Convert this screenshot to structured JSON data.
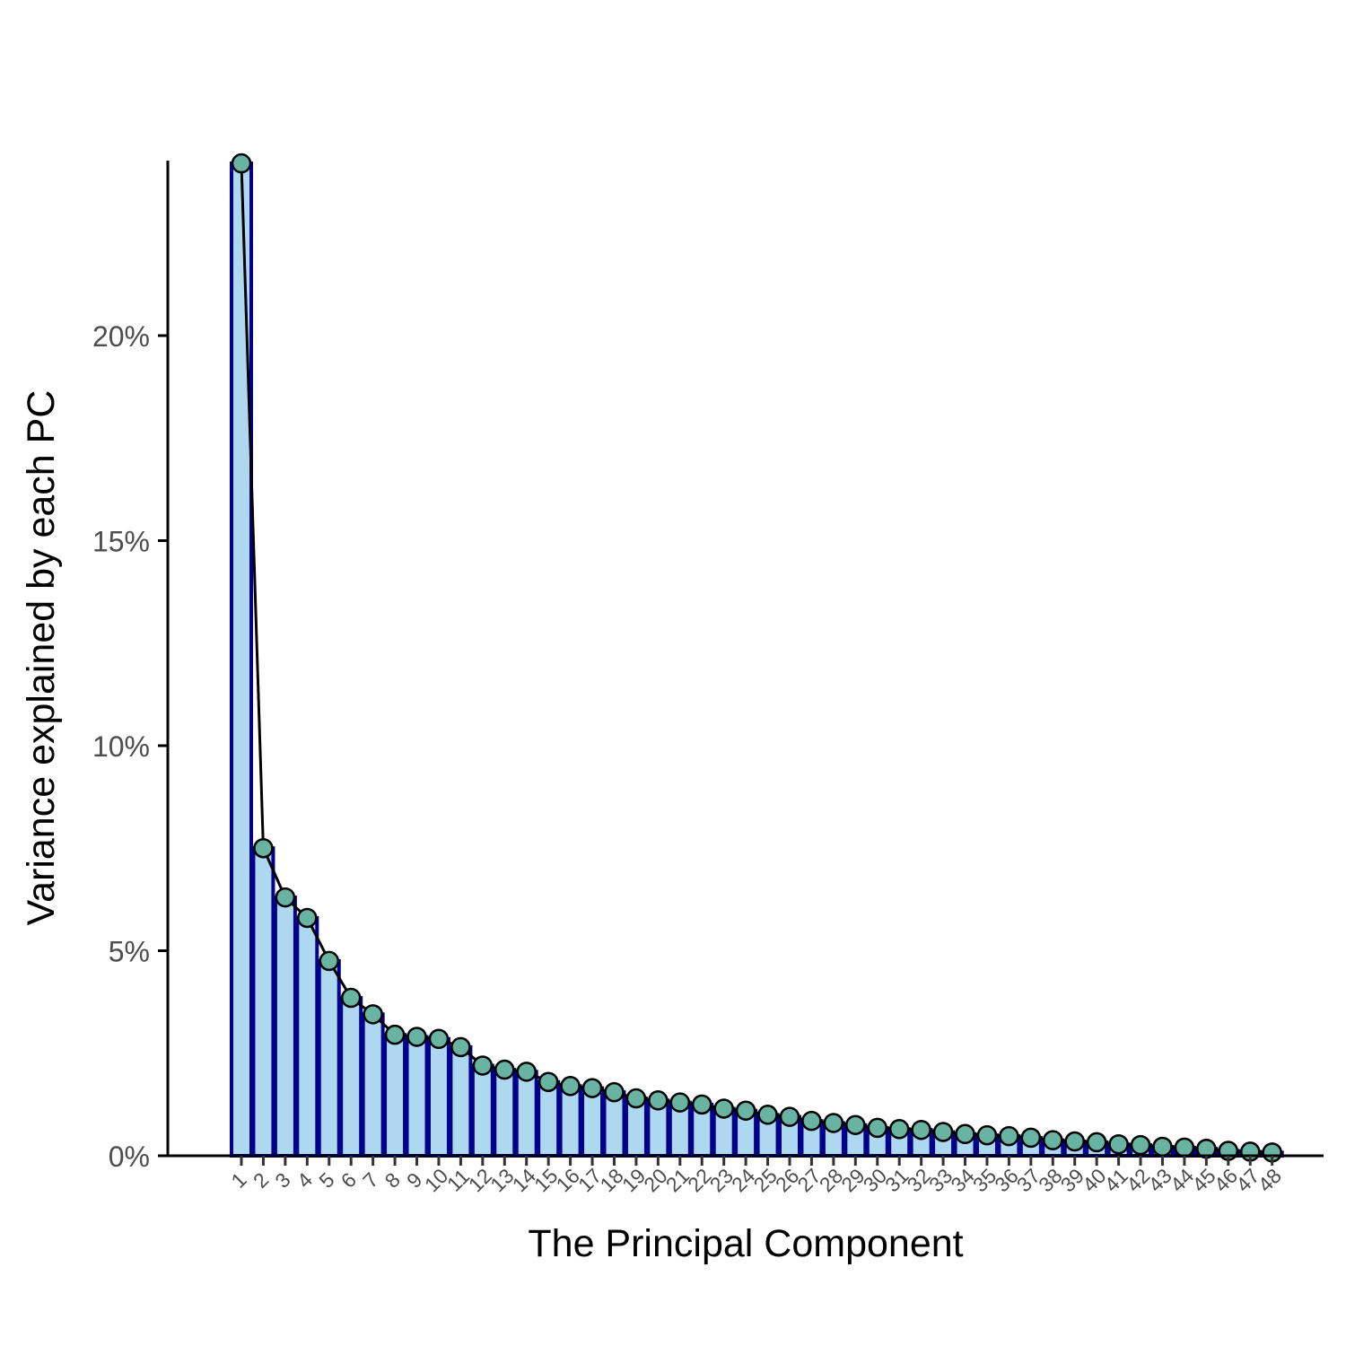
{
  "chart_data": {
    "type": "bar",
    "xlabel": "The Principal Component",
    "ylabel": "Variance explained by each PC",
    "ylim": [
      0,
      24.4
    ],
    "yticks": [
      0,
      5,
      10,
      15,
      20
    ],
    "ytick_labels": [
      "0%",
      "5%",
      "10%",
      "15%",
      "20%"
    ],
    "categories": [
      "1",
      "2",
      "3",
      "4",
      "5",
      "6",
      "7",
      "8",
      "9",
      "10",
      "11",
      "12",
      "13",
      "14",
      "15",
      "16",
      "17",
      "18",
      "19",
      "20",
      "21",
      "22",
      "23",
      "24",
      "25",
      "26",
      "27",
      "28",
      "29",
      "30",
      "31",
      "32",
      "33",
      "34",
      "35",
      "36",
      "37",
      "38",
      "39",
      "40",
      "41",
      "42",
      "43",
      "44",
      "45",
      "46",
      "47",
      "48"
    ],
    "values": [
      24.2,
      7.5,
      6.3,
      5.8,
      4.75,
      3.85,
      3.45,
      2.95,
      2.9,
      2.85,
      2.65,
      2.2,
      2.1,
      2.05,
      1.8,
      1.7,
      1.65,
      1.55,
      1.4,
      1.35,
      1.3,
      1.25,
      1.15,
      1.1,
      1.0,
      0.95,
      0.85,
      0.8,
      0.75,
      0.68,
      0.65,
      0.63,
      0.58,
      0.53,
      0.5,
      0.48,
      0.44,
      0.38,
      0.35,
      0.33,
      0.28,
      0.26,
      0.22,
      0.2,
      0.17,
      0.12,
      0.1,
      0.08
    ],
    "grid": false,
    "legend": "none",
    "colors": {
      "bar_fill": "#add8f0",
      "bar_outline": "#00008b",
      "line": "#000000",
      "point_fill": "#69b3a2",
      "point_outline": "#000000",
      "axis": "#000000"
    }
  }
}
